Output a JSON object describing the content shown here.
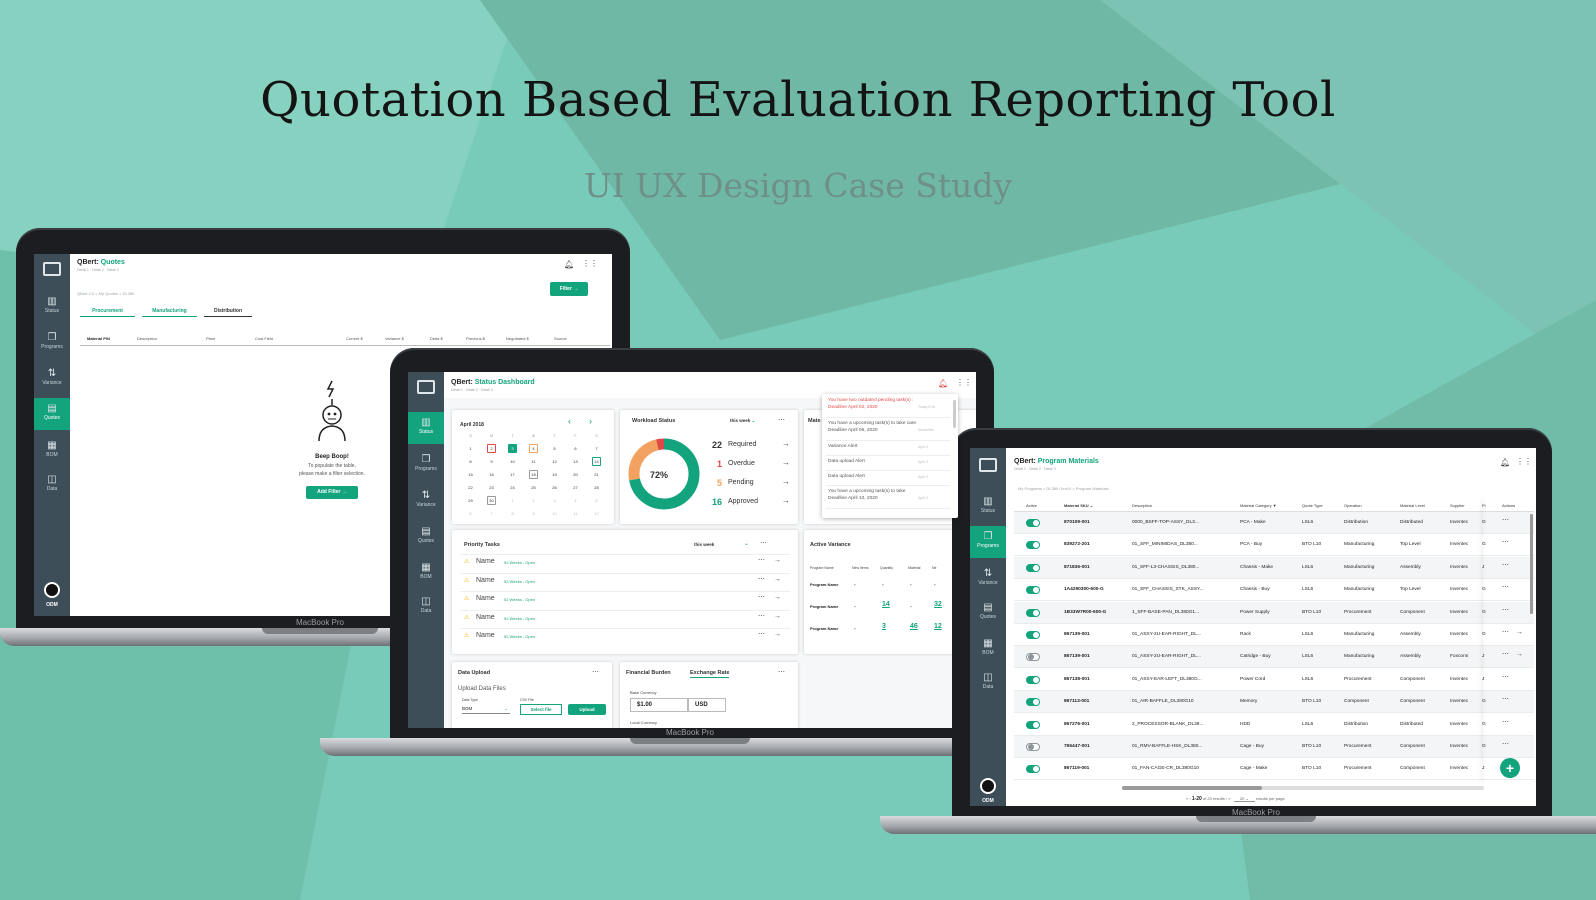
{
  "hero": {
    "title": "Quotation Based Evaluation Reporting Tool",
    "subtitle": "UI UX Design Case Study"
  },
  "colors": {
    "accent": "#13a37d",
    "sidebar": "#3d4e58",
    "alert": "#e04848",
    "pending": "#f3a160"
  },
  "laptop_brand": "MacBook Pro",
  "sidebar_items": [
    {
      "label": "Status",
      "icon": "bar-chart-icon"
    },
    {
      "label": "Programs",
      "icon": "stack-icon"
    },
    {
      "label": "Variance",
      "icon": "arrows-updown-icon"
    },
    {
      "label": "Quotes",
      "icon": "quote-doc-icon"
    },
    {
      "label": "BOM",
      "icon": "bom-doc-icon"
    },
    {
      "label": "Data",
      "icon": "data-icon"
    }
  ],
  "avatar_label": "ODM",
  "quotes": {
    "app_name": "QBert:",
    "page": "Quotes",
    "crumbs": "Detail 1 · Detail 2 · Detail 3",
    "path": "QBert 2.0 > My Quotes > DL380",
    "filter_label": "Filter",
    "tabs": [
      "Procurement",
      "Manufacturing",
      "Distribution"
    ],
    "columns": [
      "Material P/N",
      "Description",
      "Plant",
      "Cost Field",
      "Current $",
      "Variance $",
      "Delta $",
      "Previous $",
      "Negotiated $",
      "Source"
    ],
    "empty_title": "Beep Boop!",
    "empty_line1": "To populate the table,",
    "empty_line2": "please make a filter selection.",
    "add_filter": "Add Filter"
  },
  "status": {
    "app_name": "QBert:",
    "page": "Status Dashboard",
    "crumbs": "Detail 1 · Detail 2 · Detail 3",
    "calendar": {
      "month": "April 2018",
      "weekdays": [
        "S",
        "M",
        "T",
        "W",
        "T",
        "F",
        "S"
      ],
      "rows": [
        [
          "1",
          "2",
          "3",
          "4",
          "5",
          "6",
          "7"
        ],
        [
          "8",
          "9",
          "10",
          "11",
          "12",
          "13",
          "14"
        ],
        [
          "15",
          "16",
          "17",
          "18",
          "19",
          "20",
          "21"
        ],
        [
          "22",
          "23",
          "24",
          "25",
          "26",
          "27",
          "28"
        ],
        [
          "29",
          "30",
          "1",
          "2",
          "3",
          "4",
          "5"
        ],
        [
          "6",
          "7",
          "8",
          "9",
          "10",
          "11",
          "12"
        ]
      ]
    },
    "workload": {
      "title": "Workload Status",
      "period": "this week",
      "percent": "72%",
      "items": [
        {
          "count": "22",
          "label": "Required"
        },
        {
          "count": "1",
          "label": "Overdue"
        },
        {
          "count": "5",
          "label": "Pending"
        },
        {
          "count": "16",
          "label": "Approved"
        }
      ]
    },
    "notifications": [
      {
        "text": "You have two outdated pending task(s) :",
        "sub": "Deadline April 02, 2020",
        "time": "Today 9:1x",
        "alert": true
      },
      {
        "text": "You have a upcoming task(s) to take care",
        "sub": "Deadline April 06, 2020",
        "time": "November",
        "alert": false
      },
      {
        "text": "Variance Alert",
        "sub": "",
        "time": "April 0",
        "alert": false
      },
      {
        "text": "Data upload Alert",
        "sub": "",
        "time": "April 0",
        "alert": false
      },
      {
        "text": "Data upload Alert",
        "sub": "",
        "time": "April 0",
        "alert": false
      },
      {
        "text": "You have a upcoming task(s) to take",
        "sub": "Deadline April 10, 2020",
        "time": "April 0",
        "alert": false
      }
    ],
    "material_card_label": "Mate",
    "priority": {
      "title": "Priority Tasks",
      "period": "this week",
      "tasks": [
        {
          "name": "Name",
          "meta": "52 Weeks - Open"
        },
        {
          "name": "Name",
          "meta": "52 Weeks - Open"
        },
        {
          "name": "Name",
          "meta": "52 Weeks - Open"
        },
        {
          "name": "Name",
          "meta": "52 Weeks - Open"
        },
        {
          "name": "Name",
          "meta": "52 Weeks - Open"
        }
      ]
    },
    "variance": {
      "title": "Active Variance",
      "columns": [
        "Program Name",
        "New Items",
        "Quantity",
        "Material",
        "Ne"
      ],
      "rows": [
        {
          "name": "Program Name",
          "a": "-",
          "b": "-",
          "c": "-",
          "d": "-"
        },
        {
          "name": "Program Name",
          "a": "-",
          "b": "14",
          "c": "-",
          "d": "32"
        },
        {
          "name": "Program Name",
          "a": "-",
          "b": "3",
          "c": "46",
          "d": "12"
        }
      ]
    },
    "upload": {
      "title": "Data Upload",
      "subtitle": "Upload Data Files",
      "type_label": "Data Type",
      "type_value": "BOM",
      "csv_label": "CSV File",
      "select": "Select file",
      "upload": "Upload"
    },
    "finance": {
      "tab1": "Financial Burden",
      "tab2": "Exchange Rate",
      "base_label": "Base Currency",
      "amount": "$1.00",
      "currency": "USD",
      "local_label": "Local Currency"
    }
  },
  "materials": {
    "app_name": "QBert:",
    "page": "Program Materials",
    "crumbs": "Detail 1 · Detail 2 · Detail 3",
    "path": "My Programs > DL380 Gen10 > Program Materials",
    "columns": [
      "Active",
      "Material SKU",
      "Description",
      "Material Category",
      "Quote Type",
      "Operation",
      "Material Level",
      "Supplier",
      "Pl",
      "Actions"
    ],
    "rows": [
      {
        "on": true,
        "sku": "870109-001",
        "desc": "0000_BSFF-TOP-ASSY_DL3...",
        "cat": "PCA - Make",
        "qt": "LSL6",
        "op": "Distribution",
        "lvl": "Distributed",
        "sup": "Inventec",
        "pl": "G",
        "arrow": false
      },
      {
        "on": true,
        "sku": "839272-201",
        "desc": "01_SFF_MINIMIDAS_DL380...",
        "cat": "PCA - Buy",
        "qt": "BTO L10",
        "op": "Manufacturing",
        "lvl": "Top Level",
        "sup": "Inventec",
        "pl": "G",
        "arrow": false
      },
      {
        "on": true,
        "sku": "871836-001",
        "desc": "01_SFF-L3-CHASSIS_DL380...",
        "cat": "Chassis - Make",
        "qt": "LSL6",
        "op": "Manufacturing",
        "lvl": "Assembly",
        "sup": "Inventec",
        "pl": "J",
        "arrow": false
      },
      {
        "on": true,
        "sku": "1A4290300-600-G",
        "desc": "01_SFF_CHASSIS_STK_ASSY...",
        "cat": "Chassis - Buy",
        "qt": "LSL6",
        "op": "Manufacturing",
        "lvl": "Top Level",
        "sup": "Inventec",
        "pl": "G",
        "arrow": false
      },
      {
        "on": true,
        "sku": "1B33W7R00-600-G",
        "desc": "1_SFF-BASE-PAN_DL380G1...",
        "cat": "Power Supply",
        "qt": "BTO L10",
        "op": "Procurement",
        "lvl": "Component",
        "sup": "Inventec",
        "pl": "G",
        "arrow": false
      },
      {
        "on": true,
        "sku": "867139-001",
        "desc": "01_ASSY-2U-EAR-RIGHT_DL...",
        "cat": "Rack",
        "qt": "LSL6",
        "op": "Manufacturing",
        "lvl": "Assembly",
        "sup": "Inventec",
        "pl": "G",
        "arrow": true
      },
      {
        "on": false,
        "sku": "867139-001",
        "desc": "01_ASSY-2U-EAR-RIGHT_DL...",
        "cat": "Catridge - Buy",
        "qt": "LSL6",
        "op": "Manufacturing",
        "lvl": "Assembly",
        "sup": "Foxconn",
        "pl": "J",
        "arrow": true
      },
      {
        "on": true,
        "sku": "867138-001",
        "desc": "01_ASSY-EAR-LEFT_DL380G...",
        "cat": "Power Cord",
        "qt": "LSL6",
        "op": "Procurement",
        "lvl": "Component",
        "sup": "Inventec",
        "pl": "J",
        "arrow": false
      },
      {
        "on": true,
        "sku": "867113-001",
        "desc": "01_AIR-BAFFLE_DL380G10",
        "cat": "Memory",
        "qt": "BTO L10",
        "op": "Component",
        "lvl": "Component",
        "sup": "Inventec",
        "pl": "G",
        "arrow": false
      },
      {
        "on": true,
        "sku": "867276-001",
        "desc": "2_PROCESSOR-BLANK_DL38...",
        "cat": "HDD",
        "qt": "LSL6",
        "op": "Distribution",
        "lvl": "Distributed",
        "sup": "Inventec",
        "pl": "G",
        "arrow": false
      },
      {
        "on": false,
        "sku": "765447-001",
        "desc": "01_RMV-BAFFLE-HSK_DL380...",
        "cat": "Cage - Buy",
        "qt": "BTO L10",
        "op": "Procurement",
        "lvl": "Component",
        "sup": "Inventec",
        "pl": "G",
        "arrow": false
      },
      {
        "on": true,
        "sku": "867119-001",
        "desc": "01_FAN-CAGE-CR_DL380G10",
        "cat": "Cage - Make",
        "qt": "BTO L10",
        "op": "Procurement",
        "lvl": "Component",
        "sup": "Inventec",
        "pl": "J",
        "arrow": false
      }
    ],
    "pager": {
      "range": "1-20",
      "of": "of 20 results",
      "per": "20",
      "per_label": "results per page"
    }
  }
}
